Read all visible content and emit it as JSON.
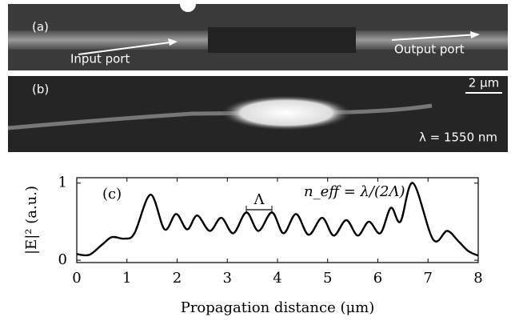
{
  "panels": {
    "a": {
      "label": "(a)",
      "input": "Input port",
      "output": "Output port"
    },
    "b": {
      "label": "(b)",
      "scale": "2 μm",
      "wavelength": "λ = 1550 nm"
    }
  },
  "chart_data": {
    "type": "line",
    "label": "(c)",
    "annotation_period": "Λ",
    "annotation_neff": "n_eff = λ/(2Λ)",
    "xlabel": "Propagation distance (μm)",
    "ylabel": "|E|² (a.u.)",
    "xlim": [
      0,
      8
    ],
    "xticks": [
      0,
      1,
      2,
      3,
      4,
      5,
      6,
      7,
      8
    ],
    "ylim": [
      -0.03,
      1.07
    ],
    "yticks": [
      0,
      1
    ],
    "series": [
      {
        "color": "#000000",
        "x": [
          0,
          0.25,
          0.5,
          0.7,
          0.95,
          1.15,
          1.47,
          1.75,
          1.98,
          2.2,
          2.4,
          2.65,
          2.88,
          3.12,
          3.38,
          3.62,
          3.89,
          4.12,
          4.37,
          4.62,
          4.89,
          5.12,
          5.37,
          5.6,
          5.82,
          6.05,
          6.26,
          6.45,
          6.7,
          7.1,
          7.38,
          7.6,
          7.8,
          8
        ],
        "values": [
          0.08,
          0.07,
          0.2,
          0.3,
          0.28,
          0.35,
          0.85,
          0.4,
          0.6,
          0.4,
          0.58,
          0.38,
          0.55,
          0.35,
          0.62,
          0.38,
          0.62,
          0.35,
          0.6,
          0.33,
          0.55,
          0.32,
          0.52,
          0.32,
          0.5,
          0.35,
          0.68,
          0.5,
          1.0,
          0.27,
          0.38,
          0.25,
          0.12,
          0.06
        ]
      }
    ]
  }
}
